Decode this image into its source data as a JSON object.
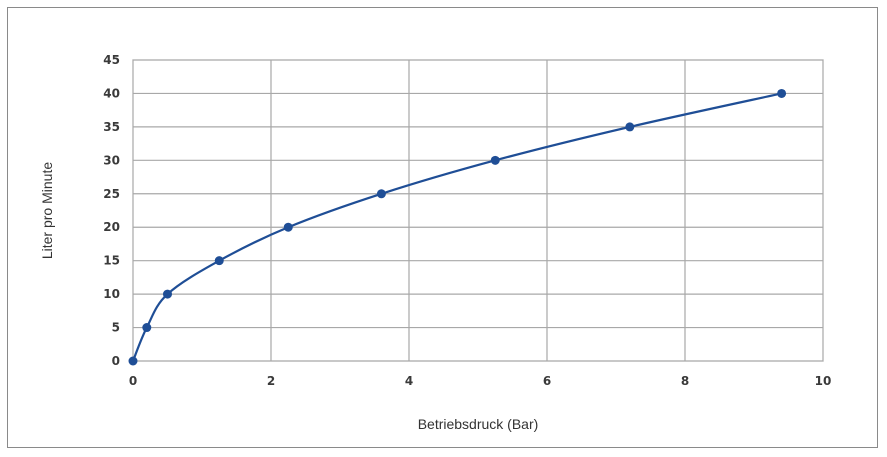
{
  "chart_data": {
    "type": "line",
    "title": "",
    "xlabel": "Betriebsdruck (Bar)",
    "ylabel": "Liter pro Minute",
    "xlim": [
      0,
      10
    ],
    "ylim": [
      0,
      45
    ],
    "x_ticks": [
      "0",
      "2",
      "4",
      "6",
      "8",
      "10"
    ],
    "y_ticks": [
      "0",
      "5",
      "10",
      "15",
      "20",
      "25",
      "30",
      "35",
      "40",
      "45"
    ],
    "grid": true,
    "legend": "none",
    "series": [
      {
        "x": [
          0,
          0.2,
          0.5,
          1.25,
          2.25,
          3.6,
          5.25,
          7.2,
          9.4
        ],
        "y": [
          0,
          5,
          10,
          15,
          20,
          25,
          30,
          35,
          40
        ],
        "color": "#1f4e96"
      }
    ],
    "colors": {
      "line": "#1f4e96",
      "marker": "#1f4e96",
      "grid": "#a8a8a8",
      "axis": "#6e6e6e"
    }
  }
}
